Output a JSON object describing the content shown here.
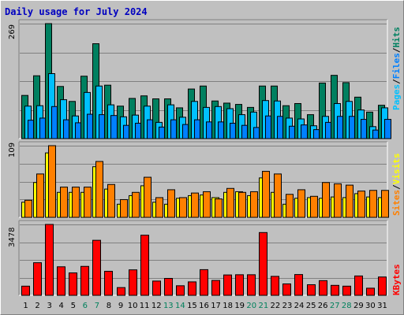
{
  "title": "Daily usage for July 2024",
  "days": [
    "1",
    "2",
    "3",
    "4",
    "5",
    "6",
    "7",
    "8",
    "9",
    "10",
    "11",
    "12",
    "13",
    "14",
    "15",
    "16",
    "17",
    "18",
    "19",
    "20",
    "21",
    "22",
    "23",
    "24",
    "25",
    "26",
    "27",
    "28",
    "29",
    "30",
    "31"
  ],
  "weekend_days": [
    "6",
    "7",
    "13",
    "14",
    "20",
    "21",
    "27",
    "28"
  ],
  "colors": {
    "hits": "#008060",
    "files": "#00c0ff",
    "pages": "#0080ff",
    "visits": "#ffff00",
    "sites": "#ff8000",
    "kbytes": "#ff0000",
    "weekend": "#00805c",
    "weekday": "#000000"
  },
  "chart_data": [
    {
      "type": "bar",
      "max_label": "269",
      "legend": [
        {
          "label": "Pages",
          "color": "#00c0ff"
        },
        {
          "label": "Files",
          "color": "#0080ff"
        },
        {
          "label": "Hits",
          "color": "#008060"
        }
      ],
      "x": [
        "1",
        "2",
        "3",
        "4",
        "5",
        "6",
        "7",
        "8",
        "9",
        "10",
        "11",
        "12",
        "13",
        "14",
        "15",
        "16",
        "17",
        "18",
        "19",
        "20",
        "21",
        "22",
        "23",
        "24",
        "25",
        "26",
        "27",
        "28",
        "29",
        "30",
        "31"
      ],
      "ylim": [
        0,
        269
      ],
      "series": [
        {
          "name": "Hits",
          "values": [
            101,
            147,
            269,
            122,
            87,
            146,
            222,
            125,
            76,
            94,
            100,
            93,
            93,
            72,
            116,
            123,
            88,
            83,
            80,
            73,
            123,
            123,
            77,
            82,
            56,
            130,
            148,
            131,
            97,
            62,
            78
          ]
        },
        {
          "name": "Files",
          "values": [
            76,
            77,
            152,
            91,
            53,
            108,
            123,
            79,
            51,
            55,
            76,
            38,
            79,
            50,
            87,
            73,
            75,
            70,
            56,
            62,
            89,
            88,
            48,
            46,
            30,
            52,
            82,
            87,
            67,
            28,
            72
          ]
        },
        {
          "name": "Pages",
          "values": [
            43,
            48,
            75,
            44,
            37,
            57,
            56,
            54,
            31,
            36,
            44,
            27,
            44,
            33,
            44,
            39,
            39,
            36,
            31,
            26,
            53,
            52,
            29,
            32,
            21,
            38,
            52,
            52,
            45,
            20,
            45
          ]
        }
      ]
    },
    {
      "type": "bar",
      "max_label": "109",
      "legend": [
        {
          "label": "Sites",
          "color": "#ff8000"
        },
        {
          "label": "Visits",
          "color": "#ffff00"
        }
      ],
      "x": [
        "1",
        "2",
        "3",
        "4",
        "5",
        "6",
        "7",
        "8",
        "9",
        "10",
        "11",
        "12",
        "13",
        "14",
        "15",
        "16",
        "17",
        "18",
        "19",
        "20",
        "21",
        "22",
        "23",
        "24",
        "25",
        "26",
        "27",
        "28",
        "29",
        "30",
        "31"
      ],
      "ylim": [
        0,
        109
      ],
      "series": [
        {
          "name": "Visits",
          "values": [
            23,
            53,
            98,
            38,
            38,
            38,
            77,
            43,
            20,
            33,
            48,
            23,
            20,
            29,
            33,
            34,
            30,
            38,
            39,
            33,
            60,
            38,
            20,
            29,
            30,
            29,
            31,
            30,
            36,
            31,
            30
          ]
        },
        {
          "name": "Sites",
          "values": [
            26,
            66,
            109,
            46,
            46,
            46,
            85,
            50,
            27,
            38,
            61,
            30,
            42,
            30,
            37,
            39,
            28,
            44,
            38,
            39,
            70,
            66,
            35,
            42,
            32,
            53,
            51,
            49,
            40,
            41,
            41
          ]
        }
      ]
    },
    {
      "type": "bar",
      "max_label": "3478",
      "legend": [
        {
          "label": "KBytes",
          "color": "#ff0000"
        }
      ],
      "x": [
        "1",
        "2",
        "3",
        "4",
        "5",
        "6",
        "7",
        "8",
        "9",
        "10",
        "11",
        "12",
        "13",
        "14",
        "15",
        "16",
        "17",
        "18",
        "19",
        "20",
        "21",
        "22",
        "23",
        "24",
        "25",
        "26",
        "27",
        "28",
        "29",
        "30",
        "31"
      ],
      "ylim": [
        0,
        3478
      ],
      "series": [
        {
          "name": "KBytes",
          "values": [
            450,
            1600,
            3478,
            1400,
            1100,
            1420,
            2700,
            1180,
            380,
            1250,
            2950,
            700,
            830,
            470,
            660,
            1260,
            730,
            1000,
            1010,
            1010,
            3080,
            930,
            560,
            1020,
            520,
            720,
            490,
            450,
            950,
            350,
            900
          ]
        }
      ]
    }
  ]
}
